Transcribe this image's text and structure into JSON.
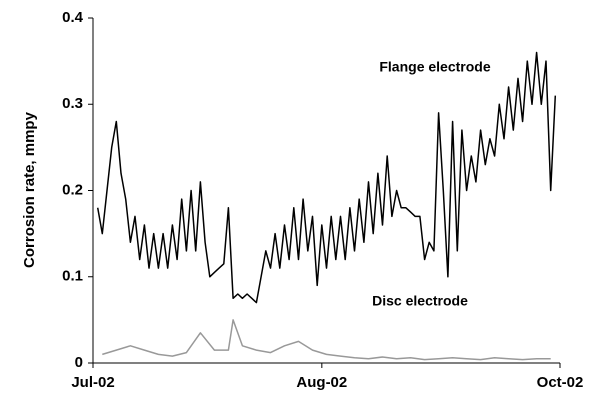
{
  "chart_data": {
    "type": "line",
    "ylabel": "Corrosion rate, mmpy",
    "xlim": [
      0,
      100
    ],
    "xticks": [
      {
        "value": 0,
        "label": "Jul-02"
      },
      {
        "value": 49,
        "label": "Aug-02"
      },
      {
        "value": 100,
        "label": "Oct-02"
      }
    ],
    "ylim": [
      0,
      0.4
    ],
    "yticks": [
      0,
      0.1,
      0.2,
      0.3,
      0.4
    ],
    "series": [
      {
        "name": "Flange electrode",
        "color": "#000000",
        "x": [
          1,
          2,
          3,
          4,
          5,
          6,
          7,
          8,
          9,
          10,
          11,
          12,
          13,
          14,
          15,
          16,
          17,
          18,
          19,
          20,
          21,
          22,
          23,
          24,
          25,
          26,
          27,
          28,
          29,
          30,
          31,
          32,
          33,
          34,
          35,
          36,
          37,
          38,
          39,
          40,
          41,
          42,
          43,
          44,
          45,
          46,
          47,
          48,
          49,
          50,
          51,
          52,
          53,
          54,
          55,
          56,
          57,
          58,
          59,
          60,
          61,
          62,
          63,
          64,
          65,
          66,
          67,
          68,
          69,
          70,
          71,
          72,
          73,
          74,
          75,
          76,
          77,
          78,
          79,
          80,
          81,
          82,
          83,
          84,
          85,
          86,
          87,
          88,
          89,
          90,
          91,
          92,
          93,
          94,
          95,
          96,
          97,
          98,
          99
        ],
        "values": [
          0.18,
          0.15,
          0.2,
          0.25,
          0.28,
          0.22,
          0.19,
          0.14,
          0.17,
          0.12,
          0.16,
          0.11,
          0.15,
          0.11,
          0.15,
          0.11,
          0.16,
          0.12,
          0.19,
          0.13,
          0.2,
          0.13,
          0.21,
          0.14,
          0.1,
          0.105,
          0.11,
          0.115,
          0.18,
          0.075,
          0.08,
          0.075,
          0.08,
          0.075,
          0.07,
          0.1,
          0.13,
          0.11,
          0.15,
          0.11,
          0.16,
          0.12,
          0.18,
          0.12,
          0.19,
          0.13,
          0.17,
          0.09,
          0.16,
          0.11,
          0.17,
          0.12,
          0.17,
          0.12,
          0.18,
          0.13,
          0.19,
          0.14,
          0.21,
          0.15,
          0.22,
          0.16,
          0.24,
          0.17,
          0.2,
          0.18,
          0.18,
          0.175,
          0.17,
          0.17,
          0.12,
          0.14,
          0.13,
          0.29,
          0.2,
          0.1,
          0.28,
          0.13,
          0.27,
          0.2,
          0.24,
          0.21,
          0.27,
          0.23,
          0.26,
          0.24,
          0.3,
          0.26,
          0.32,
          0.27,
          0.33,
          0.28,
          0.35,
          0.3,
          0.36,
          0.3,
          0.35,
          0.2,
          0.31
        ]
      },
      {
        "name": "Disc electrode",
        "color": "#999999",
        "x": [
          2,
          5,
          8,
          11,
          14,
          17,
          20,
          23,
          26,
          29,
          30,
          32,
          35,
          38,
          41,
          44,
          47,
          50,
          53,
          56,
          59,
          62,
          65,
          68,
          71,
          74,
          77,
          80,
          83,
          86,
          89,
          92,
          95,
          98
        ],
        "values": [
          0.01,
          0.015,
          0.02,
          0.015,
          0.01,
          0.008,
          0.012,
          0.035,
          0.015,
          0.015,
          0.05,
          0.02,
          0.015,
          0.012,
          0.02,
          0.025,
          0.015,
          0.01,
          0.008,
          0.006,
          0.005,
          0.007,
          0.005,
          0.006,
          0.004,
          0.005,
          0.006,
          0.005,
          0.004,
          0.006,
          0.005,
          0.004,
          0.005,
          0.005
        ]
      }
    ]
  }
}
